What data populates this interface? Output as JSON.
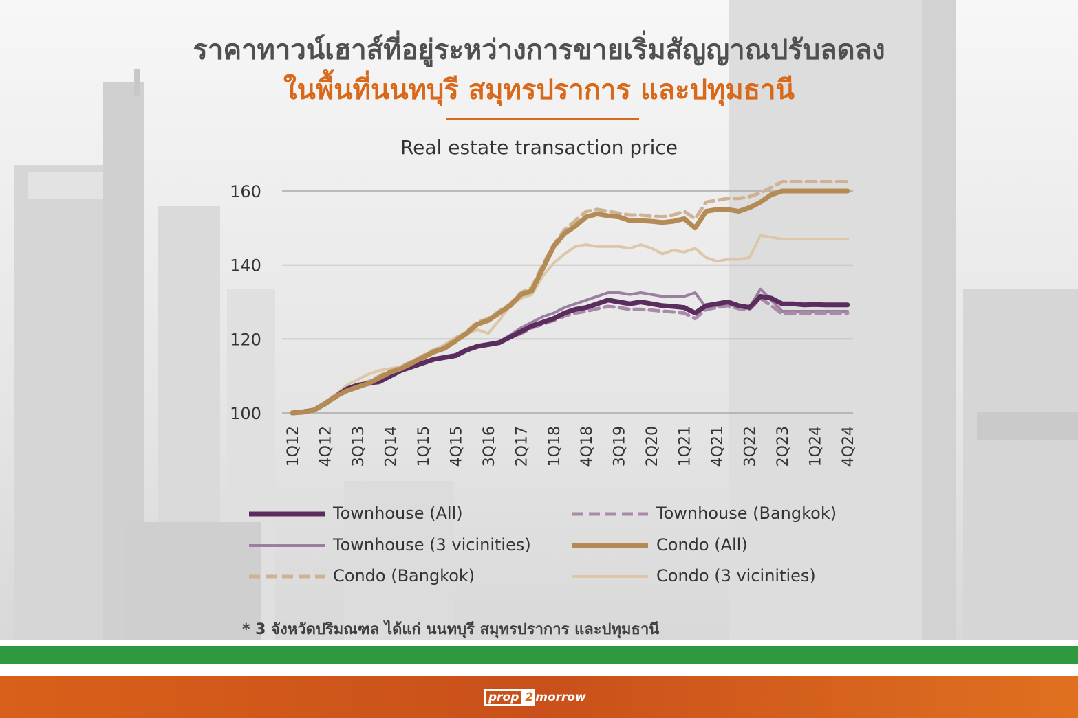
{
  "header": {
    "title_line1": "ราคาทาวน์เฮาส์ที่อยู่ระหว่างการขายเริ่มสัญญาณปรับลดลง",
    "title_line2": "ในพื้นที่นนทบุรี สมุทรปราการ และปทุมธานี"
  },
  "chart_data": {
    "type": "line",
    "title": "Real estate transaction price",
    "xlabel": "",
    "ylabel": "",
    "ylim": [
      100,
      160
    ],
    "yticks": [
      100,
      120,
      140,
      160
    ],
    "grid": true,
    "legend_position": "bottom",
    "x_ticks": [
      "1Q12",
      "4Q12",
      "3Q13",
      "2Q14",
      "1Q15",
      "4Q15",
      "3Q16",
      "2Q17",
      "1Q18",
      "4Q18",
      "3Q19",
      "2Q20",
      "1Q21",
      "4Q21",
      "3Q22",
      "2Q23",
      "1Q24",
      "4Q24"
    ],
    "x": [
      "1Q12",
      "2Q12",
      "3Q12",
      "4Q12",
      "1Q13",
      "2Q13",
      "3Q13",
      "4Q13",
      "1Q14",
      "2Q14",
      "3Q14",
      "4Q14",
      "1Q15",
      "2Q15",
      "3Q15",
      "4Q15",
      "1Q16",
      "2Q16",
      "3Q16",
      "4Q16",
      "1Q17",
      "2Q17",
      "3Q17",
      "4Q17",
      "1Q18",
      "2Q18",
      "3Q18",
      "4Q18",
      "1Q19",
      "2Q19",
      "3Q19",
      "4Q19",
      "1Q20",
      "2Q20",
      "3Q20",
      "4Q20",
      "1Q21",
      "2Q21",
      "3Q21",
      "4Q21",
      "1Q22",
      "2Q22",
      "3Q22",
      "4Q22",
      "1Q23",
      "2Q23",
      "3Q23",
      "4Q23",
      "1Q24",
      "2Q24",
      "3Q24",
      "4Q24"
    ],
    "series": [
      {
        "name": "Townhouse (All)",
        "color": "#5b2d5e",
        "style": "solid",
        "width": 7,
        "values": [
          100,
          100.3,
          100.8,
          102.5,
          104.5,
          106.5,
          107.5,
          108,
          108.5,
          110,
          111.5,
          112.5,
          113.5,
          114.5,
          115,
          115.5,
          117,
          118,
          118.5,
          119,
          120.5,
          122,
          123.5,
          124.5,
          125.5,
          127,
          128,
          128.5,
          129.5,
          130.5,
          130,
          129.5,
          130,
          129.5,
          129,
          128.8,
          128.5,
          127,
          129,
          129.5,
          130,
          129,
          128.5,
          131.5,
          131,
          129.5,
          129.5,
          129.2,
          129.3,
          129.2,
          129.2,
          129.2
        ]
      },
      {
        "name": "Townhouse (Bangkok)",
        "color": "#a98aa8",
        "style": "dashed",
        "width": 5,
        "values": [
          100,
          100.2,
          100.7,
          102.2,
          104.2,
          106.3,
          107.3,
          107.8,
          108.2,
          109.8,
          111.3,
          112.3,
          113.3,
          114.3,
          114.8,
          115.3,
          116.8,
          117.8,
          118.3,
          118.8,
          120.3,
          121.5,
          123,
          124,
          125,
          126.2,
          127,
          127.5,
          128.2,
          128.8,
          128.5,
          128,
          128,
          127.8,
          127.5,
          127.3,
          127,
          125.5,
          128,
          128.5,
          129,
          128.2,
          128,
          131,
          129,
          126.8,
          127,
          127,
          127,
          127,
          127,
          127
        ]
      },
      {
        "name": "Townhouse (3 vicinities)",
        "color": "#9a7f9e",
        "style": "solid",
        "width": 4,
        "values": [
          100,
          100.4,
          100.9,
          102.8,
          104.8,
          106.8,
          107.8,
          108.3,
          108.8,
          110.3,
          111.8,
          112.8,
          113.8,
          114.8,
          115.3,
          115.8,
          117.3,
          118.3,
          118.8,
          119.3,
          121,
          123,
          124.5,
          126,
          127,
          128.5,
          129.5,
          130.5,
          131.5,
          132.5,
          132.5,
          132,
          132.5,
          132,
          131.5,
          131.5,
          131.5,
          132.5,
          128.5,
          129,
          129.5,
          128.5,
          128.5,
          133.5,
          130.5,
          127.5,
          127.5,
          127.5,
          127.5,
          127.5,
          127.5,
          127.5
        ]
      },
      {
        "name": "Condo (All)",
        "color": "#b48a55",
        "style": "solid",
        "width": 7,
        "values": [
          100,
          100.2,
          100.8,
          102.5,
          104.5,
          106,
          107,
          108,
          109.5,
          111,
          112,
          113.5,
          115,
          116.5,
          117.5,
          119.5,
          121.5,
          124,
          125,
          127,
          129,
          132,
          133,
          139,
          145,
          148.5,
          150.5,
          153,
          153.8,
          153.3,
          153,
          152,
          152,
          151.8,
          151.5,
          151.8,
          152.5,
          150,
          154.5,
          155,
          155,
          154.5,
          155.5,
          157,
          159,
          160,
          160,
          160,
          160,
          160,
          160,
          160
        ]
      },
      {
        "name": "Condo (Bangkok)",
        "color": "#cdb394",
        "style": "dashed",
        "width": 5,
        "values": [
          100,
          100.3,
          101,
          102.8,
          104.8,
          106.5,
          107.5,
          108.5,
          110,
          111.5,
          112.5,
          114,
          115.5,
          117,
          118,
          120,
          122,
          124.5,
          125.5,
          127.5,
          129.5,
          132.5,
          134,
          140,
          145.5,
          149.5,
          152,
          154.5,
          155,
          154.5,
          154,
          153.5,
          153.5,
          153.2,
          153,
          153.5,
          154.5,
          152.5,
          157,
          157.5,
          158,
          158,
          158.5,
          159.5,
          161,
          162.5,
          162.5,
          162.5,
          162.5,
          162.5,
          162.5,
          162.5
        ]
      },
      {
        "name": "Condo (3 vicinities)",
        "color": "#dcc7a8",
        "style": "solid",
        "width": 4,
        "values": [
          100,
          100.3,
          101,
          103,
          105,
          107.5,
          109,
          110.5,
          111.5,
          112,
          112.5,
          114,
          115.5,
          117,
          118.5,
          120.5,
          121.5,
          122.5,
          121.5,
          125,
          129,
          131,
          132,
          137,
          140.5,
          143,
          145,
          145.5,
          145,
          145,
          145,
          144.5,
          145.5,
          144.5,
          143,
          144,
          143.5,
          144.5,
          142,
          141,
          141.5,
          141.5,
          142,
          148,
          147.5,
          147,
          147,
          147,
          147,
          147,
          147,
          147
        ]
      }
    ]
  },
  "footnote": "* 3 จังหวัดปริมณฑล ได้แก่ นนทบุรี สมุทรปราการ และปทุมธานี",
  "brand": {
    "part1": "prop",
    "part2": "2",
    "part3": "morrow"
  }
}
